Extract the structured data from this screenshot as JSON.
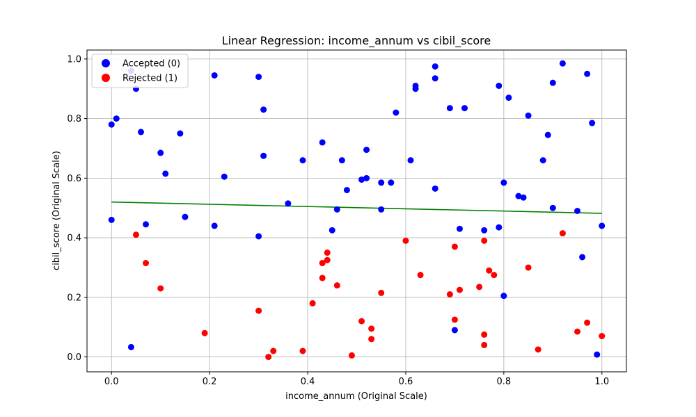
{
  "chart_data": {
    "type": "scatter",
    "title": "Linear Regression: income_annum vs cibil_score",
    "xlabel": "income_annum (Original Scale)",
    "ylabel": "cibil_score (Original Scale)",
    "xlim": [
      -0.05,
      1.05
    ],
    "ylim": [
      -0.05,
      1.03
    ],
    "xticks": [
      0.0,
      0.2,
      0.4,
      0.6,
      0.8,
      1.0
    ],
    "xtick_labels": [
      "0.0",
      "0.2",
      "0.4",
      "0.6",
      "0.8",
      "1.0"
    ],
    "yticks": [
      0.0,
      0.2,
      0.4,
      0.6,
      0.8,
      1.0
    ],
    "ytick_labels": [
      "0.0",
      "0.2",
      "0.4",
      "0.6",
      "0.8",
      "1.0"
    ],
    "grid": true,
    "legend_position": "top-left",
    "series": [
      {
        "name": "Accepted (0)",
        "color": "#0000ff",
        "points": [
          [
            0.04,
            0.96
          ],
          [
            0.21,
            0.945
          ],
          [
            0.3,
            0.94
          ],
          [
            0.05,
            0.9
          ],
          [
            0.31,
            0.83
          ],
          [
            0.01,
            0.8
          ],
          [
            0.0,
            0.78
          ],
          [
            0.06,
            0.755
          ],
          [
            0.14,
            0.75
          ],
          [
            0.1,
            0.685
          ],
          [
            0.31,
            0.675
          ],
          [
            0.43,
            0.72
          ],
          [
            0.47,
            0.66
          ],
          [
            0.39,
            0.66
          ],
          [
            0.52,
            0.695
          ],
          [
            0.11,
            0.615
          ],
          [
            0.23,
            0.605
          ],
          [
            0.51,
            0.595
          ],
          [
            0.52,
            0.6
          ],
          [
            0.48,
            0.56
          ],
          [
            0.55,
            0.585
          ],
          [
            0.57,
            0.585
          ],
          [
            0.61,
            0.66
          ],
          [
            0.58,
            0.82
          ],
          [
            0.62,
            0.91
          ],
          [
            0.62,
            0.9
          ],
          [
            0.66,
            0.975
          ],
          [
            0.66,
            0.935
          ],
          [
            0.69,
            0.835
          ],
          [
            0.72,
            0.835
          ],
          [
            0.66,
            0.565
          ],
          [
            0.36,
            0.515
          ],
          [
            0.46,
            0.495
          ],
          [
            0.55,
            0.495
          ],
          [
            0.0,
            0.46
          ],
          [
            0.15,
            0.47
          ],
          [
            0.07,
            0.445
          ],
          [
            0.21,
            0.44
          ],
          [
            0.45,
            0.425
          ],
          [
            0.3,
            0.405
          ],
          [
            0.71,
            0.43
          ],
          [
            0.76,
            0.425
          ],
          [
            0.79,
            0.435
          ],
          [
            0.79,
            0.91
          ],
          [
            0.81,
            0.87
          ],
          [
            0.8,
            0.585
          ],
          [
            0.83,
            0.54
          ],
          [
            0.84,
            0.535
          ],
          [
            0.85,
            0.81
          ],
          [
            0.88,
            0.66
          ],
          [
            0.89,
            0.745
          ],
          [
            0.9,
            0.92
          ],
          [
            0.92,
            0.985
          ],
          [
            0.97,
            0.95
          ],
          [
            0.98,
            0.785
          ],
          [
            0.9,
            0.5
          ],
          [
            0.95,
            0.49
          ],
          [
            0.96,
            0.335
          ],
          [
            1.0,
            0.44
          ],
          [
            0.99,
            0.008
          ],
          [
            0.8,
            0.205
          ],
          [
            0.7,
            0.09
          ],
          [
            0.04,
            0.033
          ]
        ]
      },
      {
        "name": "Rejected (1)",
        "color": "#ff0000",
        "points": [
          [
            0.05,
            0.41
          ],
          [
            0.07,
            0.315
          ],
          [
            0.1,
            0.23
          ],
          [
            0.19,
            0.08
          ],
          [
            0.3,
            0.155
          ],
          [
            0.32,
            0.0
          ],
          [
            0.33,
            0.02
          ],
          [
            0.39,
            0.02
          ],
          [
            0.41,
            0.18
          ],
          [
            0.43,
            0.265
          ],
          [
            0.43,
            0.315
          ],
          [
            0.44,
            0.35
          ],
          [
            0.44,
            0.325
          ],
          [
            0.46,
            0.24
          ],
          [
            0.49,
            0.005
          ],
          [
            0.51,
            0.12
          ],
          [
            0.53,
            0.095
          ],
          [
            0.53,
            0.06
          ],
          [
            0.55,
            0.215
          ],
          [
            0.6,
            0.39
          ],
          [
            0.63,
            0.275
          ],
          [
            0.69,
            0.21
          ],
          [
            0.7,
            0.37
          ],
          [
            0.7,
            0.125
          ],
          [
            0.71,
            0.225
          ],
          [
            0.75,
            0.235
          ],
          [
            0.76,
            0.39
          ],
          [
            0.76,
            0.075
          ],
          [
            0.76,
            0.04
          ],
          [
            0.77,
            0.29
          ],
          [
            0.78,
            0.275
          ],
          [
            0.85,
            0.3
          ],
          [
            0.87,
            0.025
          ],
          [
            0.92,
            0.415
          ],
          [
            0.95,
            0.085
          ],
          [
            0.97,
            0.115
          ],
          [
            1.0,
            0.07
          ]
        ]
      }
    ],
    "regression_line": {
      "color": "#008000",
      "x": [
        0.0,
        1.0
      ],
      "y": [
        0.52,
        0.482
      ]
    }
  }
}
